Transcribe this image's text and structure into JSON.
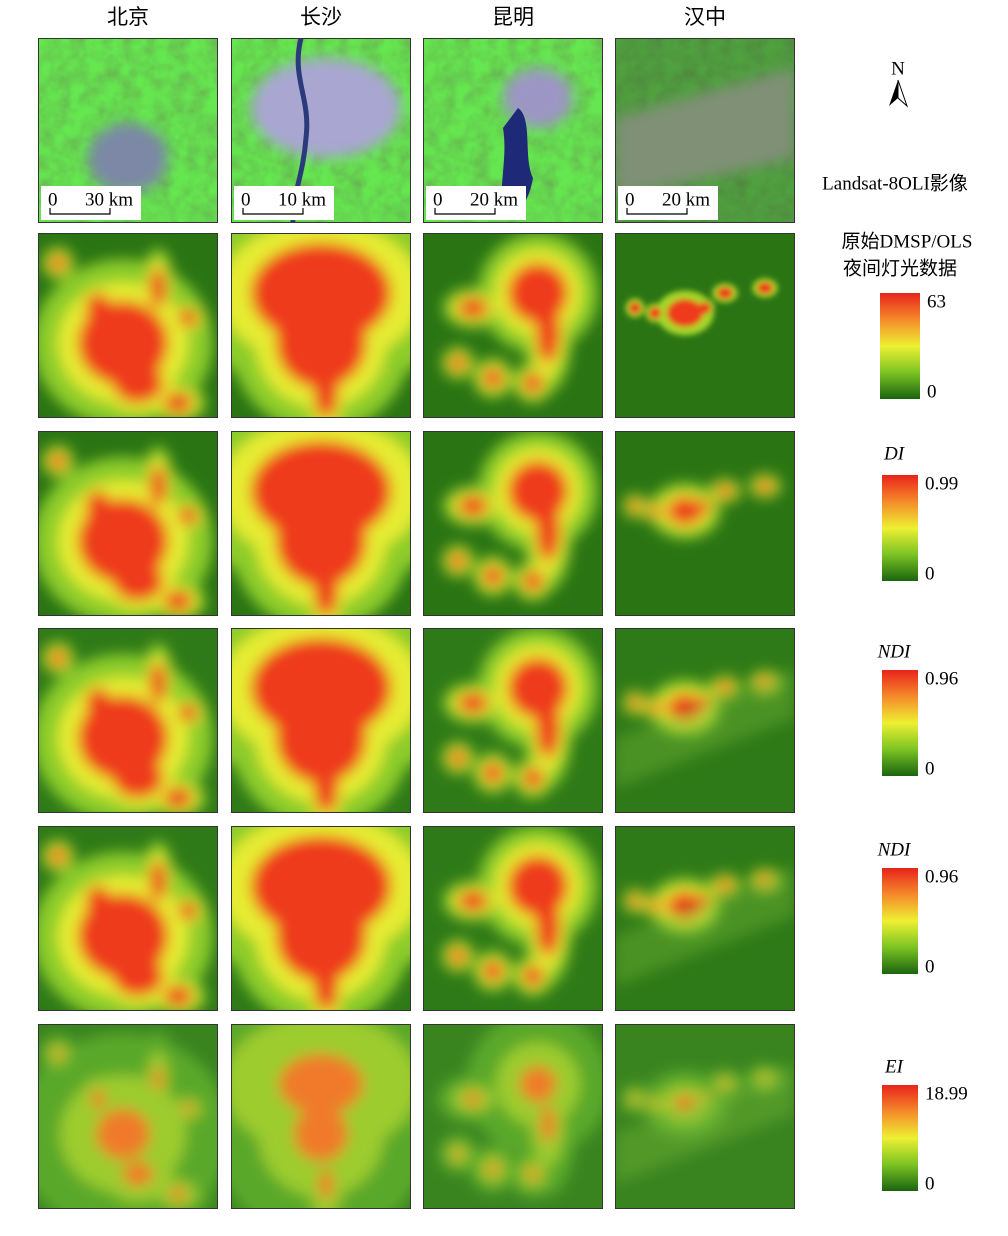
{
  "columns": [
    "北京",
    "长沙",
    "昆明",
    "汉中"
  ],
  "scale_bars": [
    {
      "zero": 0,
      "label": "30 km"
    },
    {
      "zero": 0,
      "label": "10 km"
    },
    {
      "zero": 0,
      "label": "20 km"
    },
    {
      "zero": 0,
      "label": "20 km"
    }
  ],
  "north": "N",
  "rows": [
    {
      "label": "Landsat-8OLI影像"
    },
    {
      "label_lines": [
        "原始DMSP/OLS",
        "夜间灯光数据"
      ],
      "max": 63,
      "min": 0
    },
    {
      "label": "DI",
      "max": 0.99,
      "min": 0
    },
    {
      "label": "NDI",
      "max": 0.96,
      "min": 0
    },
    {
      "label": "NDI",
      "max": 0.96,
      "min": 0
    },
    {
      "label": "EI",
      "max": 18.99,
      "min": 0
    }
  ]
}
